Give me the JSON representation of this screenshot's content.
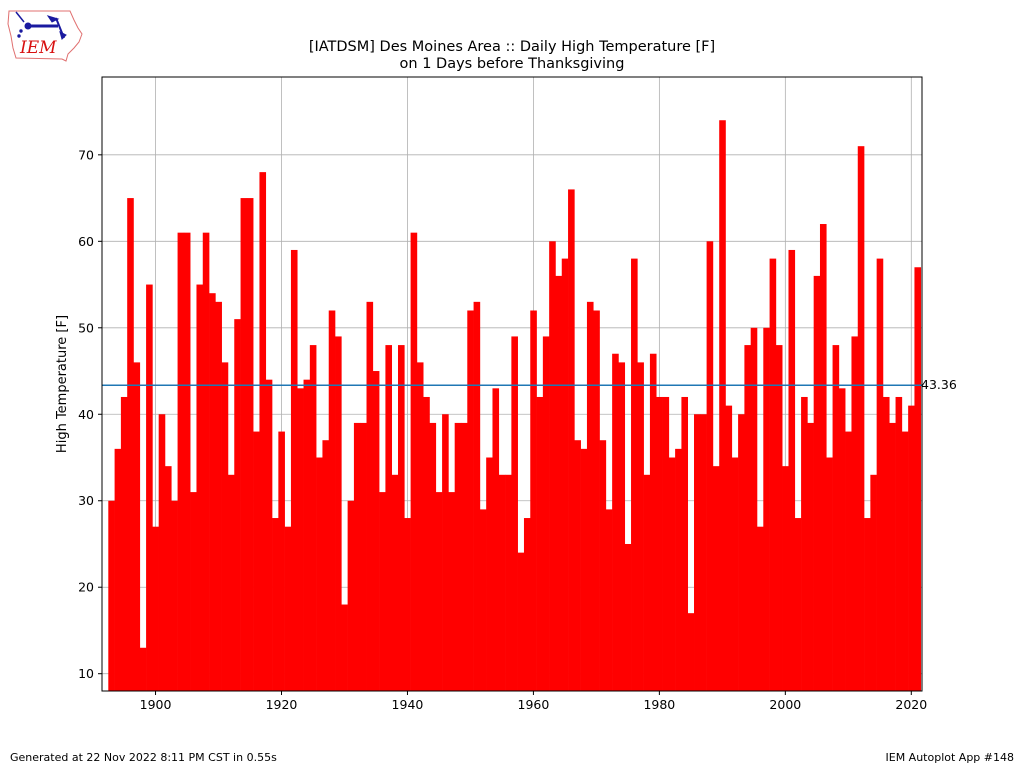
{
  "logo": {
    "text": "IEM"
  },
  "footer": {
    "generated": "Generated at 22 Nov 2022 8:11 PM CST in 0.55s",
    "app": "IEM Autoplot App #148"
  },
  "colors": {
    "bar": "#ff0000",
    "mean_line": "#1f77b4",
    "grid": "#b0b0b0"
  },
  "chart_data": {
    "type": "bar",
    "title": "[IATDSM] Des Moines Area :: Daily High Temperature [F]",
    "subtitle": "on 1 Days before Thanksgiving",
    "xlabel": "",
    "ylabel": "High Temperature [F]",
    "xlim": [
      1891.5,
      2021.7
    ],
    "ylim": [
      8,
      79
    ],
    "xticks": [
      1900,
      1920,
      1940,
      1960,
      1980,
      2000,
      2020
    ],
    "yticks": [
      10,
      20,
      30,
      40,
      50,
      60,
      70
    ],
    "grid": true,
    "mean": 43.36,
    "mean_label": "43.36",
    "x": [
      1893,
      1894,
      1895,
      1896,
      1897,
      1898,
      1899,
      1900,
      1901,
      1902,
      1903,
      1904,
      1905,
      1906,
      1907,
      1908,
      1909,
      1910,
      1911,
      1912,
      1913,
      1914,
      1915,
      1916,
      1917,
      1918,
      1919,
      1920,
      1921,
      1922,
      1923,
      1924,
      1925,
      1926,
      1927,
      1928,
      1929,
      1930,
      1931,
      1932,
      1933,
      1934,
      1935,
      1936,
      1937,
      1938,
      1939,
      1940,
      1941,
      1942,
      1943,
      1944,
      1945,
      1946,
      1947,
      1948,
      1949,
      1950,
      1951,
      1952,
      1953,
      1954,
      1955,
      1956,
      1957,
      1958,
      1959,
      1960,
      1961,
      1962,
      1963,
      1964,
      1965,
      1966,
      1967,
      1968,
      1969,
      1970,
      1971,
      1972,
      1973,
      1974,
      1975,
      1976,
      1977,
      1978,
      1979,
      1980,
      1981,
      1982,
      1983,
      1984,
      1985,
      1986,
      1987,
      1988,
      1989,
      1990,
      1991,
      1992,
      1993,
      1994,
      1995,
      1996,
      1997,
      1998,
      1999,
      2000,
      2001,
      2002,
      2003,
      2004,
      2005,
      2006,
      2007,
      2008,
      2009,
      2010,
      2011,
      2012,
      2013,
      2014,
      2015,
      2016,
      2017,
      2018,
      2019,
      2020,
      2021
    ],
    "values": [
      30,
      36,
      42,
      65,
      46,
      13,
      55,
      27,
      40,
      34,
      30,
      61,
      61,
      31,
      55,
      61,
      54,
      53,
      46,
      33,
      51,
      65,
      65,
      38,
      68,
      44,
      28,
      38,
      27,
      59,
      43,
      44,
      48,
      35,
      37,
      52,
      49,
      18,
      30,
      39,
      39,
      53,
      45,
      31,
      48,
      33,
      48,
      28,
      61,
      46,
      42,
      39,
      31,
      40,
      31,
      39,
      39,
      52,
      53,
      29,
      35,
      43,
      33,
      33,
      49,
      24,
      28,
      52,
      42,
      49,
      60,
      56,
      58,
      66,
      37,
      36,
      53,
      52,
      37,
      29,
      47,
      46,
      25,
      58,
      46,
      33,
      47,
      42,
      42,
      35,
      36,
      42,
      17,
      40,
      40,
      60,
      34,
      74,
      41,
      35,
      40,
      48,
      50,
      27,
      50,
      58,
      48,
      34,
      59,
      28,
      42,
      39,
      56,
      62,
      35,
      48,
      43,
      38,
      49,
      71,
      28,
      33,
      58,
      42,
      39,
      42,
      38,
      41,
      57
    ]
  }
}
